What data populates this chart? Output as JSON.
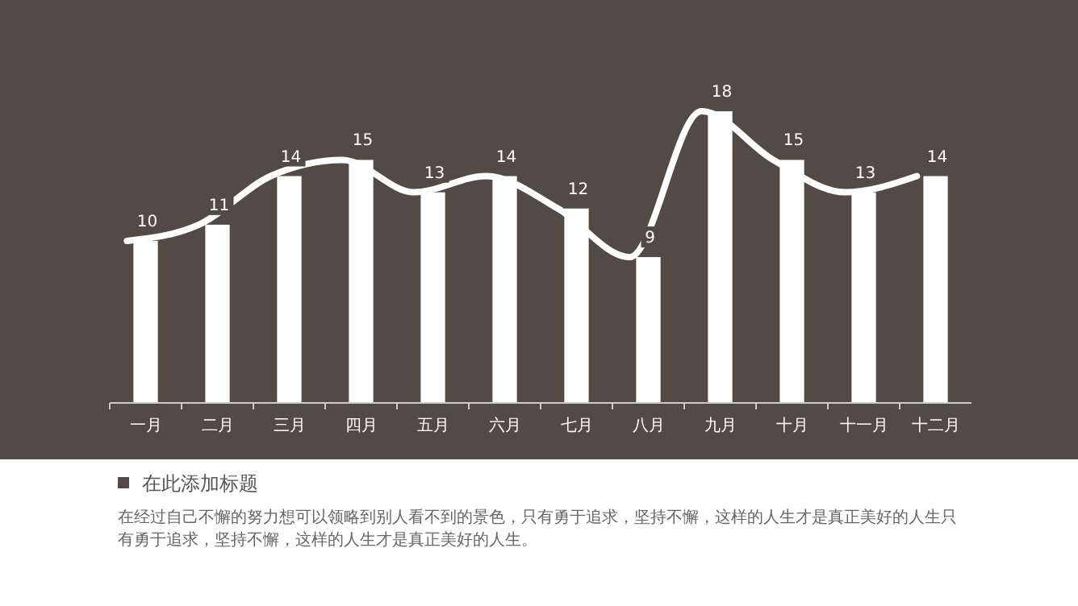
{
  "chart_data": {
    "type": "bar",
    "title": "在此添加标题",
    "annotations": [
      "在经过自己不懈的努力想可以领略到别人看不到的景色，只有勇于追求，坚持不懈，这样的人生才是真正美好的人生只有勇于追求，坚持不懈，这样的人生才是真正美好的人生。"
    ],
    "categories": [
      "一月",
      "二月",
      "三月",
      "四月",
      "五月",
      "六月",
      "七月",
      "八月",
      "九月",
      "十月",
      "十一月",
      "十二月"
    ],
    "series": [
      {
        "color": "#ffffff",
        "values": [
          10,
          11,
          14,
          15,
          13,
          14,
          12,
          9,
          18,
          15,
          13,
          14
        ],
        "value_labels": [
          "10",
          "11",
          "14",
          "15",
          "13",
          "14",
          "12",
          "9",
          "18",
          "15",
          "13",
          "14"
        ]
      },
      {
        "type": "line",
        "color": "#ffffff",
        "marker": "none",
        "line_style": "solid",
        "values": [
          10,
          11,
          14,
          15,
          13,
          14,
          12,
          9,
          18,
          15,
          13,
          14
        ]
      }
    ]
  }
}
